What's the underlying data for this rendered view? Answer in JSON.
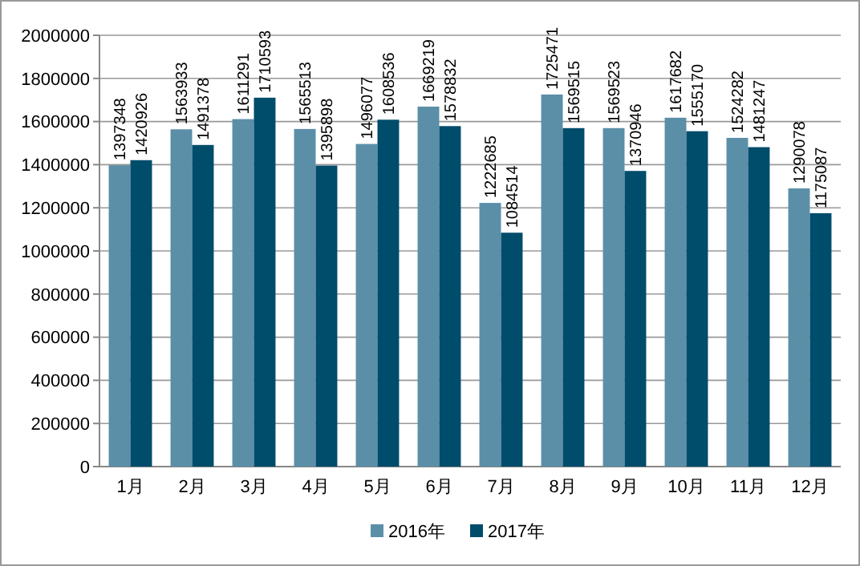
{
  "chart_data": {
    "type": "bar",
    "categories": [
      "1月",
      "2月",
      "3月",
      "4月",
      "5月",
      "6月",
      "7月",
      "8月",
      "9月",
      "10月",
      "11月",
      "12月"
    ],
    "series": [
      {
        "name": "2016年",
        "color": "#5b8fa8",
        "values": [
          1397348,
          1563933,
          1611291,
          1565513,
          1496077,
          1669219,
          1222685,
          1725471,
          1569523,
          1617682,
          1524282,
          1290078
        ]
      },
      {
        "name": "2017年",
        "color": "#004c6b",
        "values": [
          1420926,
          1491378,
          1710593,
          1395898,
          1608536,
          1578832,
          1084514,
          1569515,
          1370946,
          1555170,
          1481247,
          1175087
        ]
      }
    ],
    "ylim": [
      0,
      2000000
    ],
    "yticks": [
      0,
      200000,
      400000,
      600000,
      800000,
      1000000,
      1200000,
      1400000,
      1600000,
      1800000,
      2000000
    ],
    "grid": "y",
    "legend": "bottom",
    "data_labels": true
  }
}
